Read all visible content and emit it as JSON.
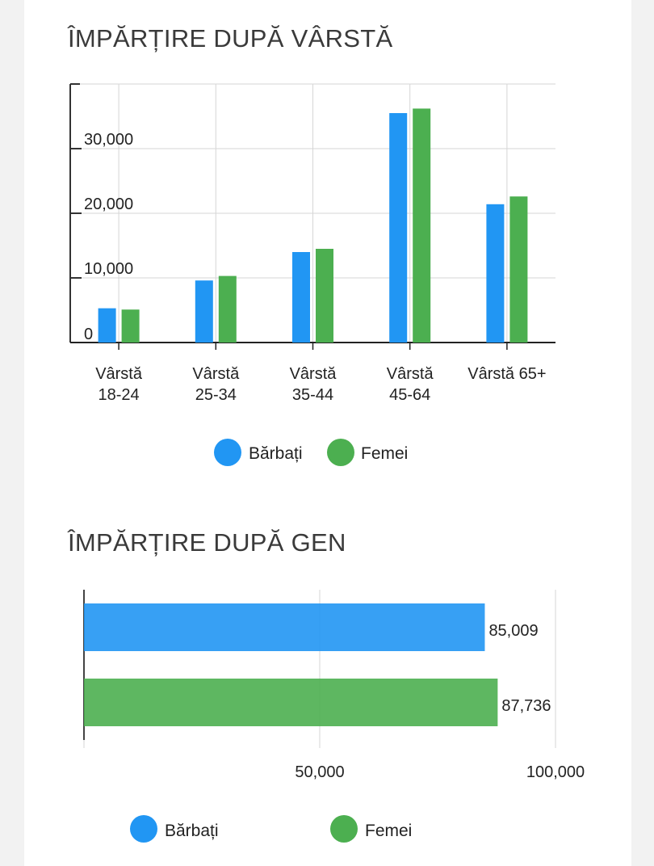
{
  "colors": {
    "male": "#2196f3",
    "female": "#4caf50"
  },
  "chart_data": [
    {
      "type": "bar",
      "title": "ÎMPĂRȚIRE DUPĂ VÂRSTĂ",
      "categories": [
        [
          "Vârstă",
          "18-24"
        ],
        [
          "Vârstă",
          "25-34"
        ],
        [
          "Vârstă",
          "35-44"
        ],
        [
          "Vârstă",
          "45-64"
        ],
        [
          "Vârstă 65+"
        ]
      ],
      "series": [
        {
          "name": "Bărbați",
          "values": [
            5300,
            9600,
            14000,
            35500,
            21400
          ]
        },
        {
          "name": "Femei",
          "values": [
            5100,
            10300,
            14500,
            36200,
            22600
          ]
        }
      ],
      "yticks": [
        0,
        10000,
        20000,
        30000
      ],
      "ytick_labels": [
        "0",
        "10,000",
        "20,000",
        "30,000"
      ],
      "ylim": [
        0,
        40000
      ],
      "grid": true,
      "legend": "bottom"
    },
    {
      "type": "bar",
      "orientation": "horizontal",
      "title": "ÎMPĂRȚIRE DUPĂ GEN",
      "categories": [
        "Bărbați",
        "Femei"
      ],
      "values": [
        85009,
        87736
      ],
      "value_labels": [
        "85,009",
        "87,736"
      ],
      "xticks": [
        50000,
        100000
      ],
      "xtick_labels": [
        "50,000",
        "100,000"
      ],
      "xlim": [
        0,
        100000
      ],
      "grid": true,
      "legend": "bottom"
    }
  ]
}
